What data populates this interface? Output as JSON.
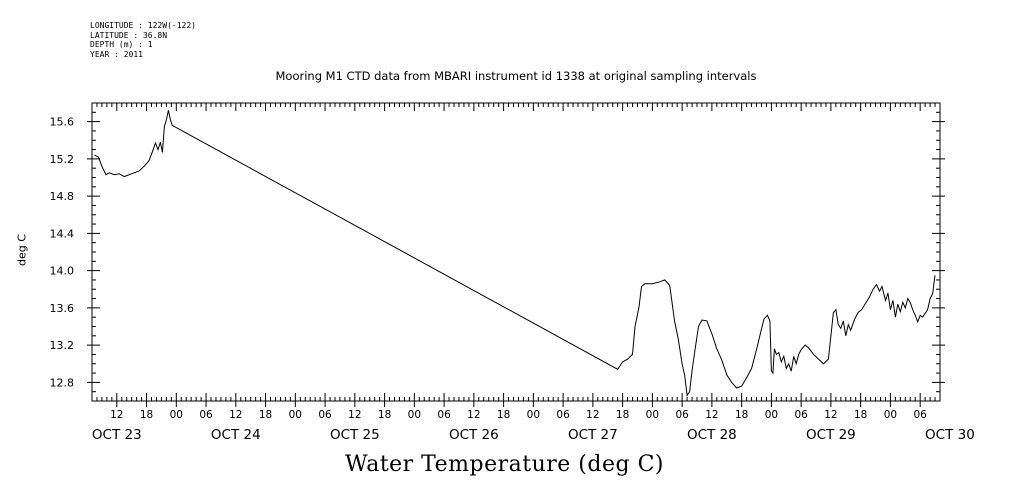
{
  "meta": {
    "longitude": "LONGITUDE : 122W(-122)",
    "latitude": "LATITUDE : 36.8N",
    "depth": "DEPTH (m) : 1",
    "year": "YEAR : 2011"
  },
  "chart_data": {
    "type": "line",
    "title": "Mooring M1 CTD data from MBARI instrument id 1338 at original sampling intervals",
    "ylabel": "deg C",
    "xlabel_title": "Water Temperature (deg C)",
    "ylim": [
      12.6,
      15.8
    ],
    "y_ticks": [
      "15.6",
      "15.2",
      "14.8",
      "14.4",
      "14.0",
      "13.6",
      "13.2",
      "12.8"
    ],
    "xlim_hours": [
      7,
      178
    ],
    "x_hour_ticks": [
      "12",
      "18",
      "00",
      "06",
      "12",
      "18",
      "00",
      "06",
      "12",
      "18",
      "00",
      "06",
      "12",
      "18",
      "00",
      "06",
      "12",
      "18",
      "00",
      "06",
      "12",
      "18",
      "00",
      "06",
      "12",
      "18",
      "00",
      "06"
    ],
    "x_day_labels": [
      "OCT 23",
      "OCT 24",
      "OCT 25",
      "OCT 26",
      "OCT 27",
      "OCT 28",
      "OCT 29",
      "OCT 30"
    ],
    "x_unit": "hours since OCT 23 00:00",
    "series": [
      {
        "points": [
          [
            7.5,
            15.24
          ],
          [
            8.3,
            15.22
          ],
          [
            9,
            15.12
          ],
          [
            9.8,
            15.03
          ],
          [
            10.5,
            15.05
          ],
          [
            11.5,
            15.03
          ],
          [
            12.5,
            15.04
          ],
          [
            13.5,
            15.01
          ],
          [
            14.5,
            15.03
          ],
          [
            15.5,
            15.05
          ],
          [
            16.5,
            15.07
          ],
          [
            17.5,
            15.12
          ],
          [
            18.5,
            15.18
          ],
          [
            19.2,
            15.28
          ],
          [
            19.8,
            15.37
          ],
          [
            20.3,
            15.3
          ],
          [
            20.8,
            15.38
          ],
          [
            21.2,
            15.27
          ],
          [
            21.6,
            15.55
          ],
          [
            22,
            15.62
          ],
          [
            22.4,
            15.72
          ],
          [
            22.8,
            15.62
          ],
          [
            23.2,
            15.56
          ],
          [
            113,
            12.94
          ],
          [
            114,
            13.02
          ],
          [
            115,
            13.05
          ],
          [
            116,
            13.1
          ],
          [
            116.5,
            13.4
          ],
          [
            117.3,
            13.61
          ],
          [
            117.8,
            13.83
          ],
          [
            118.5,
            13.86
          ],
          [
            120,
            13.86
          ],
          [
            121.5,
            13.88
          ],
          [
            122.5,
            13.9
          ],
          [
            123.5,
            13.84
          ],
          [
            124.5,
            13.45
          ],
          [
            125.2,
            13.27
          ],
          [
            126,
            13.0
          ],
          [
            126.5,
            12.88
          ],
          [
            127,
            12.66
          ],
          [
            127.5,
            12.7
          ],
          [
            128,
            12.92
          ],
          [
            128.6,
            13.15
          ],
          [
            129.3,
            13.4
          ],
          [
            130,
            13.47
          ],
          [
            131,
            13.46
          ],
          [
            132,
            13.32
          ],
          [
            133,
            13.16
          ],
          [
            134,
            13.04
          ],
          [
            135,
            12.88
          ],
          [
            136,
            12.8
          ],
          [
            137,
            12.74
          ],
          [
            138,
            12.76
          ],
          [
            139,
            12.85
          ],
          [
            140,
            12.95
          ],
          [
            141,
            13.15
          ],
          [
            141.8,
            13.33
          ],
          [
            142.5,
            13.48
          ],
          [
            143.2,
            13.52
          ],
          [
            143.7,
            13.46
          ],
          [
            144,
            12.92
          ],
          [
            144.3,
            12.9
          ],
          [
            144.6,
            13.16
          ],
          [
            145,
            13.1
          ],
          [
            145.5,
            13.12
          ],
          [
            146,
            13.02
          ],
          [
            146.5,
            13.08
          ],
          [
            147,
            12.95
          ],
          [
            147.5,
            13.0
          ],
          [
            148,
            12.92
          ],
          [
            148.5,
            13.08
          ],
          [
            149,
            13.0
          ],
          [
            149.5,
            13.1
          ],
          [
            150,
            13.15
          ],
          [
            150.8,
            13.2
          ],
          [
            151.5,
            13.17
          ],
          [
            152.5,
            13.1
          ],
          [
            153.5,
            13.05
          ],
          [
            154.5,
            13.0
          ],
          [
            155.5,
            13.05
          ],
          [
            156,
            13.3
          ],
          [
            156.5,
            13.55
          ],
          [
            157,
            13.58
          ],
          [
            157.5,
            13.42
          ],
          [
            158,
            13.38
          ],
          [
            158.5,
            13.46
          ],
          [
            159,
            13.3
          ],
          [
            159.5,
            13.42
          ],
          [
            160,
            13.36
          ],
          [
            160.8,
            13.48
          ],
          [
            161.5,
            13.55
          ],
          [
            162.2,
            13.58
          ],
          [
            163,
            13.65
          ],
          [
            163.8,
            13.72
          ],
          [
            164.5,
            13.8
          ],
          [
            165.2,
            13.85
          ],
          [
            165.8,
            13.78
          ],
          [
            166.3,
            13.83
          ],
          [
            167,
            13.68
          ],
          [
            167.5,
            13.76
          ],
          [
            168,
            13.58
          ],
          [
            168.5,
            13.68
          ],
          [
            169,
            13.5
          ],
          [
            169.5,
            13.64
          ],
          [
            170,
            13.56
          ],
          [
            170.5,
            13.66
          ],
          [
            171,
            13.6
          ],
          [
            171.5,
            13.7
          ],
          [
            172,
            13.66
          ],
          [
            172.5,
            13.58
          ],
          [
            173,
            13.52
          ],
          [
            173.5,
            13.45
          ],
          [
            174,
            13.52
          ],
          [
            174.5,
            13.5
          ],
          [
            175.5,
            13.58
          ],
          [
            176,
            13.7
          ],
          [
            176.5,
            13.75
          ],
          [
            177,
            13.95
          ]
        ]
      }
    ]
  }
}
